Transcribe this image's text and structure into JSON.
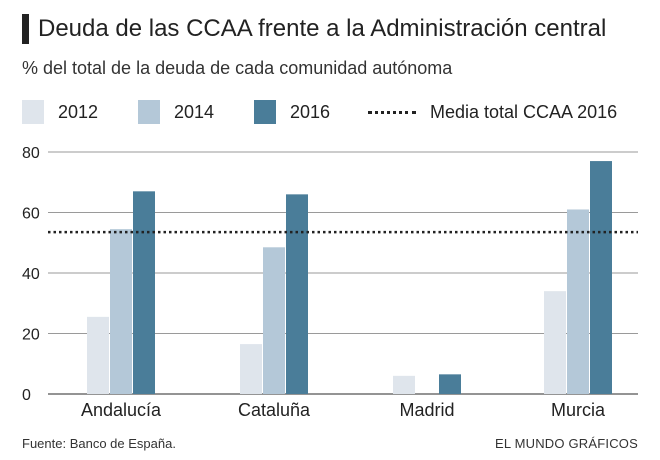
{
  "header": {
    "title": "Deuda de las CCAA frente a la Administración central",
    "subtitle": "% del total de la deuda de cada comunidad autónoma"
  },
  "legend": {
    "items": [
      {
        "label": "2012",
        "color": "#dfe5ec"
      },
      {
        "label": "2014",
        "color": "#b4c8d8"
      },
      {
        "label": "2016",
        "color": "#4a7d99"
      }
    ],
    "reference_label": "Media total CCAA 2016"
  },
  "footer": {
    "source": "Fuente: Banco de España.",
    "credit": "EL MUNDO GRÁFICOS"
  },
  "chart_data": {
    "type": "bar",
    "title": "Deuda de las CCAA frente a la Administración central",
    "subtitle": "% del total de la deuda de cada comunidad autónoma",
    "categories": [
      "Andalucía",
      "Cataluña",
      "Madrid",
      "Murcia"
    ],
    "series": [
      {
        "name": "2012",
        "color": "#dfe5ec",
        "values": [
          25.5,
          16.5,
          6,
          34
        ]
      },
      {
        "name": "2014",
        "color": "#b4c8d8",
        "values": [
          54.5,
          48.5,
          0,
          61
        ]
      },
      {
        "name": "2016",
        "color": "#4a7d99",
        "values": [
          67,
          66,
          6.5,
          77
        ]
      }
    ],
    "reference_line": {
      "label": "Media total CCAA 2016",
      "value": 53.5
    },
    "yticks": [
      "0",
      "20",
      "40",
      "60",
      "80"
    ],
    "ylim": [
      0,
      80
    ],
    "grid": true,
    "xlabel": "",
    "ylabel": ""
  }
}
